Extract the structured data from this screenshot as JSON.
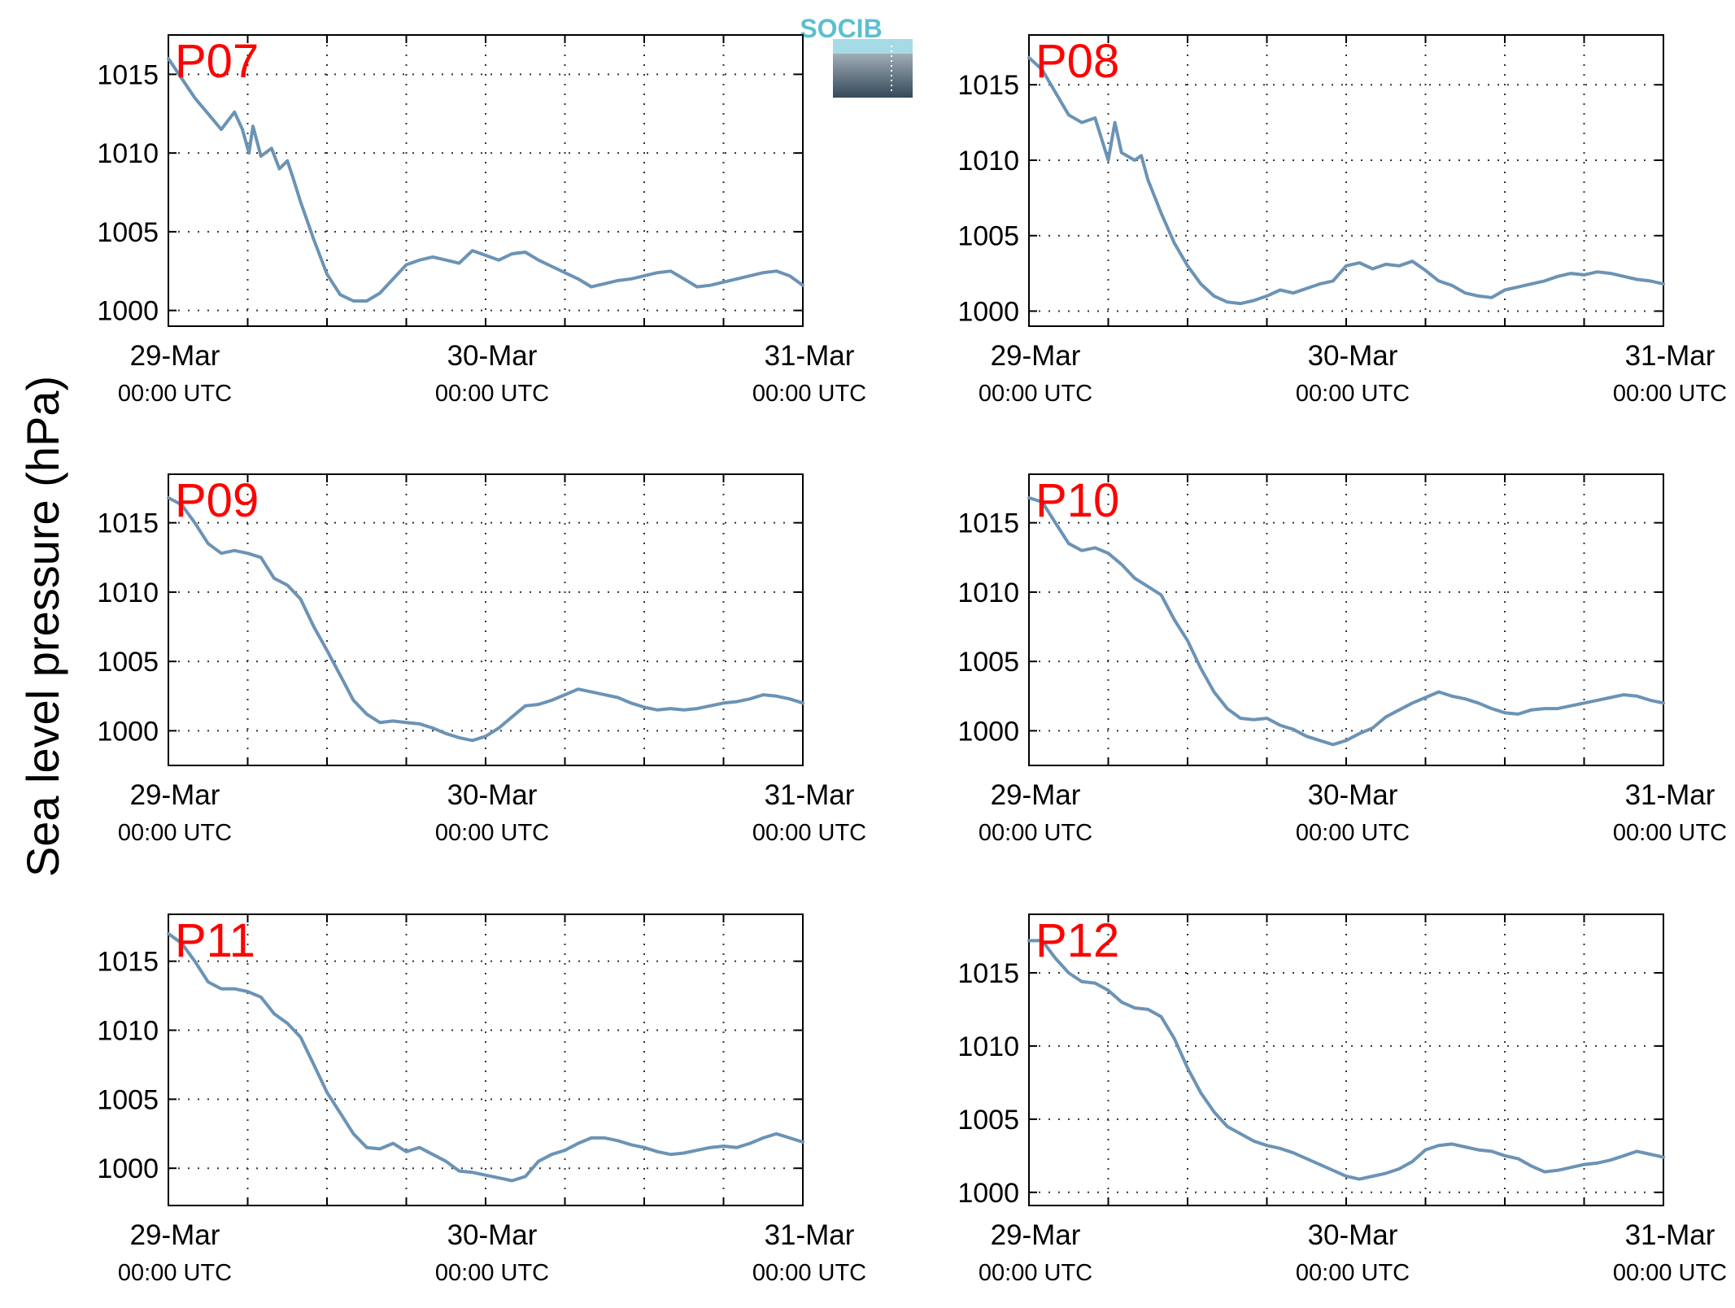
{
  "figure": {
    "ylabel": "Sea level pressure (hPa)",
    "logo_text": "SOCIB"
  },
  "colors": {
    "line": "#6b93b5",
    "panel_label": "#ff0000",
    "grid": "#333333",
    "logo_top": "#5dbfd0",
    "logo_bottom": "#34495a"
  },
  "chart_data": [
    {
      "type": "line",
      "title": "",
      "panel_label": "P07",
      "x_tick_labels": [
        [
          "29-Mar",
          "00:00 UTC"
        ],
        [
          "30-Mar",
          "00:00 UTC"
        ],
        [
          "31-Mar",
          "00:00 UTC"
        ]
      ],
      "xlim_hours": [
        0,
        48
      ],
      "ylim": [
        999,
        1017.5
      ],
      "yticks": [
        1000,
        1005,
        1010,
        1015
      ],
      "grid": true,
      "series": [
        {
          "x_hours": [
            0,
            2,
            4,
            5,
            5.6,
            6.1,
            6.4,
            7,
            7.8,
            8.4,
            9,
            9.4,
            10,
            11,
            12,
            13,
            14,
            15,
            16,
            17,
            18,
            19,
            20,
            21,
            22,
            23,
            24,
            25,
            26,
            27,
            28,
            29,
            30,
            31,
            32,
            33,
            34,
            35,
            36,
            37,
            38,
            39,
            40,
            41,
            42,
            43,
            44,
            45,
            46,
            47,
            48
          ],
          "values": [
            1016,
            1013.5,
            1011.5,
            1012.6,
            1011.5,
            1010,
            1011.7,
            1009.8,
            1010.3,
            1009,
            1009.5,
            1008.5,
            1006.9,
            1004.5,
            1002.3,
            1001,
            1000.6,
            1000.6,
            1001.1,
            1002,
            1002.9,
            1003.2,
            1003.4,
            1003.2,
            1003,
            1003.8,
            1003.5,
            1003.2,
            1003.6,
            1003.7,
            1003.2,
            1002.8,
            1002.4,
            1002,
            1001.5,
            1001.7,
            1001.9,
            1002,
            1002.2,
            1002.4,
            1002.5,
            1002,
            1001.5,
            1001.6,
            1001.8,
            1002,
            1002.2,
            1002.4,
            1002.5,
            1002.2,
            1001.6
          ]
        }
      ]
    },
    {
      "type": "line",
      "title": "",
      "panel_label": "P08",
      "x_tick_labels": [
        [
          "29-Mar",
          "00:00 UTC"
        ],
        [
          "30-Mar",
          "00:00 UTC"
        ],
        [
          "31-Mar",
          "00:00 UTC"
        ]
      ],
      "xlim_hours": [
        0,
        48
      ],
      "ylim": [
        999,
        1018.3
      ],
      "yticks": [
        1000,
        1005,
        1010,
        1015
      ],
      "grid": true,
      "series": [
        {
          "x_hours": [
            0,
            1,
            2,
            3,
            4,
            5,
            6,
            6.5,
            7,
            8,
            8.5,
            9,
            10,
            11,
            12,
            13,
            14,
            15,
            16,
            17,
            18,
            19,
            20,
            21,
            22,
            23,
            24,
            25,
            26,
            27,
            28,
            29,
            30,
            31,
            32,
            33,
            34,
            35,
            36,
            37,
            38,
            39,
            40,
            41,
            42,
            43,
            44,
            45,
            46,
            47,
            48
          ],
          "values": [
            1016.8,
            1016,
            1014.5,
            1013,
            1012.5,
            1012.8,
            1010,
            1012.5,
            1010.5,
            1010,
            1010.3,
            1008.7,
            1006.5,
            1004.5,
            1003,
            1001.8,
            1001,
            1000.6,
            1000.5,
            1000.7,
            1001,
            1001.4,
            1001.2,
            1001.5,
            1001.8,
            1002,
            1003,
            1003.2,
            1002.8,
            1003.1,
            1003,
            1003.3,
            1002.7,
            1002,
            1001.7,
            1001.2,
            1001,
            1000.9,
            1001.4,
            1001.6,
            1001.8,
            1002,
            1002.3,
            1002.5,
            1002.4,
            1002.6,
            1002.5,
            1002.3,
            1002.1,
            1002,
            1001.8
          ]
        }
      ]
    },
    {
      "type": "line",
      "title": "",
      "panel_label": "P09",
      "x_tick_labels": [
        [
          "29-Mar",
          "00:00 UTC"
        ],
        [
          "30-Mar",
          "00:00 UTC"
        ],
        [
          "31-Mar",
          "00:00 UTC"
        ]
      ],
      "xlim_hours": [
        0,
        48
      ],
      "ylim": [
        997.5,
        1018.5
      ],
      "yticks": [
        1000,
        1005,
        1010,
        1015
      ],
      "grid": true,
      "series": [
        {
          "x_hours": [
            0,
            1,
            2,
            3,
            4,
            5,
            6,
            7,
            8,
            9,
            10,
            11,
            12,
            13,
            14,
            15,
            16,
            17,
            18,
            19,
            20,
            21,
            22,
            23,
            24,
            25,
            26,
            27,
            28,
            29,
            30,
            31,
            32,
            33,
            34,
            35,
            36,
            37,
            38,
            39,
            40,
            41,
            42,
            43,
            44,
            45,
            46,
            47,
            48
          ],
          "values": [
            1016.8,
            1016.3,
            1015,
            1013.5,
            1012.8,
            1013,
            1012.8,
            1012.5,
            1011,
            1010.5,
            1009.5,
            1007.5,
            1005.8,
            1004,
            1002.2,
            1001.2,
            1000.6,
            1000.7,
            1000.6,
            1000.5,
            1000.2,
            999.8,
            999.5,
            999.3,
            999.6,
            1000.2,
            1001,
            1001.8,
            1001.9,
            1002.2,
            1002.6,
            1003,
            1002.8,
            1002.6,
            1002.4,
            1002,
            1001.7,
            1001.5,
            1001.6,
            1001.5,
            1001.6,
            1001.8,
            1002,
            1002.1,
            1002.3,
            1002.6,
            1002.5,
            1002.3,
            1002
          ]
        }
      ]
    },
    {
      "type": "line",
      "title": "",
      "panel_label": "P10",
      "x_tick_labels": [
        [
          "29-Mar",
          "00:00 UTC"
        ],
        [
          "30-Mar",
          "00:00 UTC"
        ],
        [
          "31-Mar",
          "00:00 UTC"
        ]
      ],
      "xlim_hours": [
        0,
        48
      ],
      "ylim": [
        997.5,
        1018.5
      ],
      "yticks": [
        1000,
        1005,
        1010,
        1015
      ],
      "grid": true,
      "series": [
        {
          "x_hours": [
            0,
            1,
            2,
            3,
            4,
            5,
            6,
            7,
            8,
            9,
            10,
            11,
            12,
            13,
            14,
            15,
            16,
            17,
            18,
            19,
            20,
            21,
            22,
            23,
            24,
            25,
            26,
            27,
            28,
            29,
            30,
            31,
            32,
            33,
            34,
            35,
            36,
            37,
            38,
            39,
            40,
            41,
            42,
            43,
            44,
            45,
            46,
            47,
            48
          ],
          "values": [
            1016.8,
            1016.5,
            1015,
            1013.5,
            1013,
            1013.2,
            1012.8,
            1012,
            1011,
            1010.4,
            1009.8,
            1008,
            1006.5,
            1004.5,
            1002.8,
            1001.6,
            1000.9,
            1000.8,
            1000.9,
            1000.4,
            1000.1,
            999.6,
            999.3,
            999,
            999.3,
            999.8,
            1000.2,
            1001,
            1001.5,
            1002,
            1002.4,
            1002.8,
            1002.5,
            1002.3,
            1002,
            1001.6,
            1001.3,
            1001.2,
            1001.5,
            1001.6,
            1001.6,
            1001.8,
            1002,
            1002.2,
            1002.4,
            1002.6,
            1002.5,
            1002.2,
            1002
          ]
        }
      ]
    },
    {
      "type": "line",
      "title": "",
      "panel_label": "P11",
      "x_tick_labels": [
        [
          "29-Mar",
          "00:00 UTC"
        ],
        [
          "30-Mar",
          "00:00 UTC"
        ],
        [
          "31-Mar",
          "00:00 UTC"
        ]
      ],
      "xlim_hours": [
        0,
        48
      ],
      "ylim": [
        997.3,
        1018.4
      ],
      "yticks": [
        1000,
        1005,
        1010,
        1015
      ],
      "grid": true,
      "series": [
        {
          "x_hours": [
            0,
            1,
            2,
            3,
            4,
            5,
            6,
            7,
            8,
            9,
            10,
            11,
            12,
            13,
            14,
            15,
            16,
            17,
            18,
            19,
            20,
            21,
            22,
            23,
            24,
            25,
            26,
            27,
            28,
            29,
            30,
            31,
            32,
            33,
            34,
            35,
            36,
            37,
            38,
            39,
            40,
            41,
            42,
            43,
            44,
            45,
            46,
            47,
            48
          ],
          "values": [
            1017,
            1016.3,
            1015,
            1013.5,
            1013,
            1013,
            1012.8,
            1012.4,
            1011.2,
            1010.5,
            1009.5,
            1007.5,
            1005.5,
            1004,
            1002.5,
            1001.5,
            1001.4,
            1001.8,
            1001.2,
            1001.5,
            1001,
            1000.5,
            999.8,
            999.7,
            999.5,
            999.3,
            999.1,
            999.4,
            1000.5,
            1001,
            1001.3,
            1001.8,
            1002.2,
            1002.2,
            1002,
            1001.7,
            1001.5,
            1001.2,
            1001,
            1001.1,
            1001.3,
            1001.5,
            1001.6,
            1001.5,
            1001.8,
            1002.2,
            1002.5,
            1002.2,
            1001.9
          ]
        }
      ]
    },
    {
      "type": "line",
      "title": "",
      "panel_label": "P12",
      "x_tick_labels": [
        [
          "29-Mar",
          "00:00 UTC"
        ],
        [
          "30-Mar",
          "00:00 UTC"
        ],
        [
          "31-Mar",
          "00:00 UTC"
        ]
      ],
      "xlim_hours": [
        0,
        48
      ],
      "ylim": [
        999.1,
        1019
      ],
      "yticks": [
        1000,
        1005,
        1010,
        1015
      ],
      "grid": true,
      "series": [
        {
          "x_hours": [
            0,
            1,
            2,
            3,
            4,
            5,
            6,
            7,
            8,
            9,
            10,
            11,
            12,
            13,
            14,
            15,
            16,
            17,
            18,
            19,
            20,
            21,
            22,
            23,
            24,
            25,
            26,
            27,
            28,
            29,
            30,
            31,
            32,
            33,
            34,
            35,
            36,
            37,
            38,
            39,
            40,
            41,
            42,
            43,
            44,
            45,
            46,
            47,
            48
          ],
          "values": [
            1017.2,
            1017.2,
            1016,
            1015,
            1014.4,
            1014.3,
            1013.8,
            1013,
            1012.6,
            1012.5,
            1012,
            1010.5,
            1008.5,
            1006.8,
            1005.5,
            1004.5,
            1004,
            1003.5,
            1003.2,
            1003,
            1002.7,
            1002.3,
            1001.9,
            1001.5,
            1001.1,
            1000.9,
            1001.1,
            1001.3,
            1001.6,
            1002.1,
            1002.9,
            1003.2,
            1003.3,
            1003.1,
            1002.9,
            1002.8,
            1002.5,
            1002.3,
            1001.8,
            1001.4,
            1001.5,
            1001.7,
            1001.9,
            1002,
            1002.2,
            1002.5,
            1002.8,
            1002.6,
            1002.4
          ]
        }
      ]
    }
  ]
}
